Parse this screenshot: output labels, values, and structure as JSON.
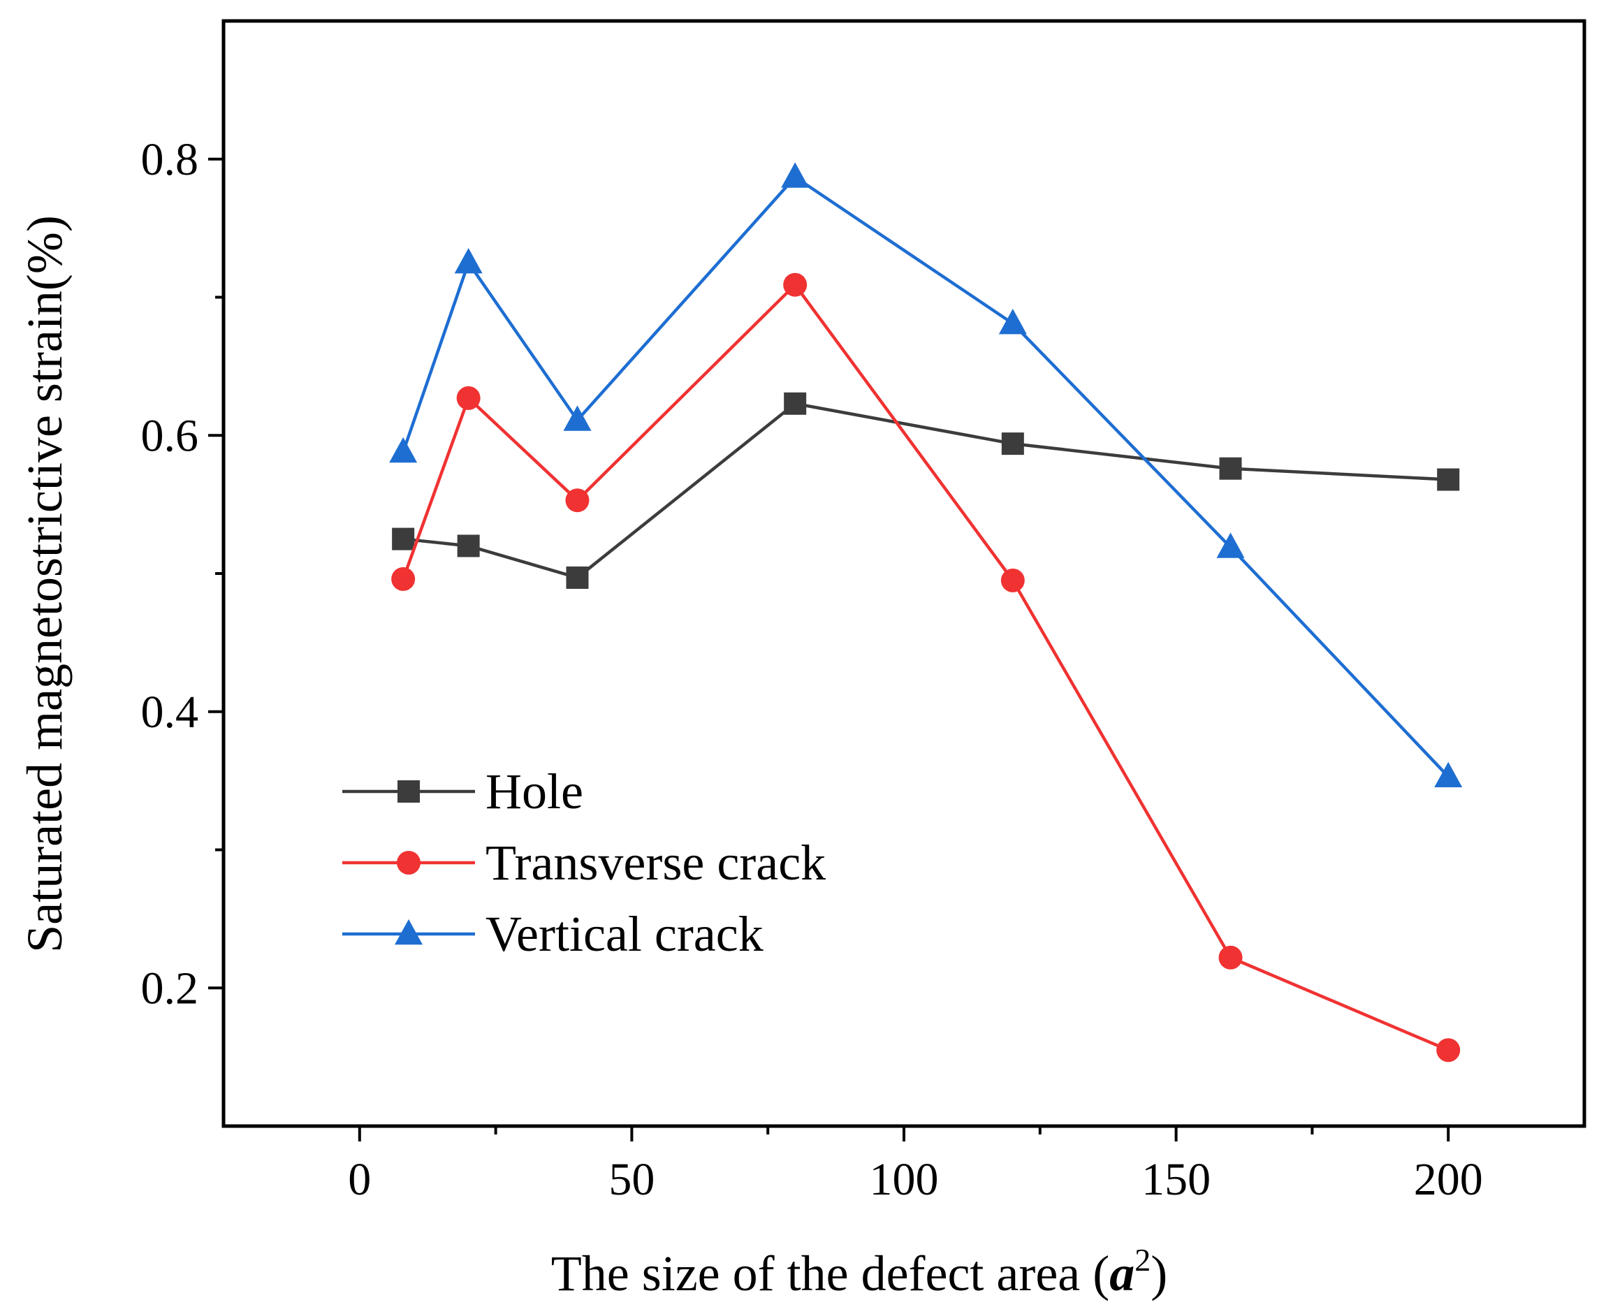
{
  "chart_data": {
    "type": "line",
    "title": "",
    "xlabel_prefix": "The size of the defect area (",
    "xlabel_var": "a",
    "xlabel_sup": "2",
    "xlabel_suffix": ")",
    "ylabel": "Saturated magnetostrictive strain(%)",
    "xlim": [
      -25,
      225
    ],
    "ylim": [
      0.1,
      0.9
    ],
    "xticks": [
      0,
      50,
      100,
      150,
      200
    ],
    "xtick_labels": [
      "0",
      "50",
      "100",
      "150",
      "200"
    ],
    "x_minor_ticks": [
      25,
      75,
      125,
      175
    ],
    "yticks": [
      0.2,
      0.4,
      0.6,
      0.8
    ],
    "ytick_labels": [
      "0.2",
      "0.4",
      "0.6",
      "0.8"
    ],
    "y_minor_ticks": [
      0.3,
      0.5,
      0.7
    ],
    "grid": false,
    "legend_position": "lower-left",
    "x": [
      8,
      20,
      40,
      80,
      120,
      160,
      200
    ],
    "series": [
      {
        "name": "Hole",
        "color": "#3c3c3c",
        "marker": "square",
        "x": [
          8,
          20,
          40,
          80,
          120,
          160,
          200
        ],
        "values": [
          0.525,
          0.52,
          0.497,
          0.623,
          0.594,
          0.576,
          0.568
        ]
      },
      {
        "name": "Transverse crack",
        "color": "#f03232",
        "marker": "circle",
        "x": [
          8,
          20,
          40,
          80,
          120,
          160,
          200
        ],
        "values": [
          0.496,
          0.627,
          0.553,
          0.709,
          0.495,
          0.222,
          0.155
        ]
      },
      {
        "name": "Vertical crack",
        "color": "#1e6ed2",
        "marker": "triangle",
        "x": [
          8,
          20,
          40,
          80,
          120,
          160,
          200
        ],
        "values": [
          0.588,
          0.725,
          0.611,
          0.787,
          0.681,
          0.519,
          0.353
        ]
      }
    ]
  }
}
